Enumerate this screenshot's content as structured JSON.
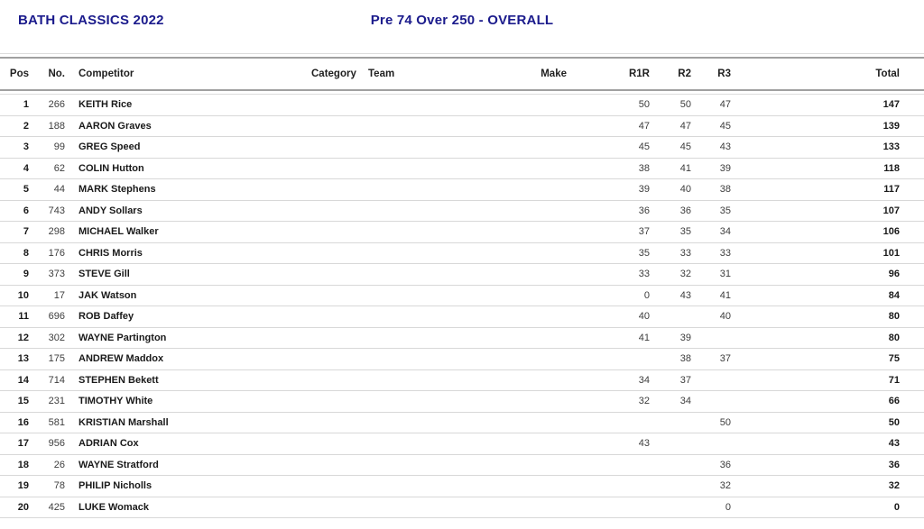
{
  "header": {
    "event_title": "BATH CLASSICS 2022",
    "class_title": "Pre 74 Over 250 - OVERALL"
  },
  "colors": {
    "title_navy": "#1b1b8c",
    "rule_dark": "#a0a0a0",
    "rule_light": "#dcdcdc",
    "row_separator": "#d8d8d8"
  },
  "table": {
    "columns": [
      "Pos",
      "No.",
      "Competitor",
      "Category",
      "Team",
      "Make",
      "R1R",
      "R2",
      "R3",
      "Total"
    ],
    "rows": [
      {
        "pos": "1",
        "no": "266",
        "competitor": "KEITH Rice",
        "category": "",
        "team": "",
        "make": "",
        "r1r": "50",
        "r2": "50",
        "r3": "47",
        "total": "147"
      },
      {
        "pos": "2",
        "no": "188",
        "competitor": "AARON Graves",
        "category": "",
        "team": "",
        "make": "",
        "r1r": "47",
        "r2": "47",
        "r3": "45",
        "total": "139"
      },
      {
        "pos": "3",
        "no": "99",
        "competitor": "GREG Speed",
        "category": "",
        "team": "",
        "make": "",
        "r1r": "45",
        "r2": "45",
        "r3": "43",
        "total": "133"
      },
      {
        "pos": "4",
        "no": "62",
        "competitor": "COLIN Hutton",
        "category": "",
        "team": "",
        "make": "",
        "r1r": "38",
        "r2": "41",
        "r3": "39",
        "total": "118"
      },
      {
        "pos": "5",
        "no": "44",
        "competitor": "MARK Stephens",
        "category": "",
        "team": "",
        "make": "",
        "r1r": "39",
        "r2": "40",
        "r3": "38",
        "total": "117"
      },
      {
        "pos": "6",
        "no": "743",
        "competitor": "ANDY Sollars",
        "category": "",
        "team": "",
        "make": "",
        "r1r": "36",
        "r2": "36",
        "r3": "35",
        "total": "107"
      },
      {
        "pos": "7",
        "no": "298",
        "competitor": "MICHAEL Walker",
        "category": "",
        "team": "",
        "make": "",
        "r1r": "37",
        "r2": "35",
        "r3": "34",
        "total": "106"
      },
      {
        "pos": "8",
        "no": "176",
        "competitor": "CHRIS Morris",
        "category": "",
        "team": "",
        "make": "",
        "r1r": "35",
        "r2": "33",
        "r3": "33",
        "total": "101"
      },
      {
        "pos": "9",
        "no": "373",
        "competitor": "STEVE Gill",
        "category": "",
        "team": "",
        "make": "",
        "r1r": "33",
        "r2": "32",
        "r3": "31",
        "total": "96"
      },
      {
        "pos": "10",
        "no": "17",
        "competitor": "JAK Watson",
        "category": "",
        "team": "",
        "make": "",
        "r1r": "0",
        "r2": "43",
        "r3": "41",
        "total": "84"
      },
      {
        "pos": "11",
        "no": "696",
        "competitor": "ROB Daffey",
        "category": "",
        "team": "",
        "make": "",
        "r1r": "40",
        "r2": "",
        "r3": "40",
        "total": "80"
      },
      {
        "pos": "12",
        "no": "302",
        "competitor": "WAYNE Partington",
        "category": "",
        "team": "",
        "make": "",
        "r1r": "41",
        "r2": "39",
        "r3": "",
        "total": "80"
      },
      {
        "pos": "13",
        "no": "175",
        "competitor": "ANDREW Maddox",
        "category": "",
        "team": "",
        "make": "",
        "r1r": "",
        "r2": "38",
        "r3": "37",
        "total": "75"
      },
      {
        "pos": "14",
        "no": "714",
        "competitor": "STEPHEN Bekett",
        "category": "",
        "team": "",
        "make": "",
        "r1r": "34",
        "r2": "37",
        "r3": "",
        "total": "71"
      },
      {
        "pos": "15",
        "no": "231",
        "competitor": "TIMOTHY White",
        "category": "",
        "team": "",
        "make": "",
        "r1r": "32",
        "r2": "34",
        "r3": "",
        "total": "66"
      },
      {
        "pos": "16",
        "no": "581",
        "competitor": "KRISTIAN Marshall",
        "category": "",
        "team": "",
        "make": "",
        "r1r": "",
        "r2": "",
        "r3": "50",
        "total": "50"
      },
      {
        "pos": "17",
        "no": "956",
        "competitor": "ADRIAN Cox",
        "category": "",
        "team": "",
        "make": "",
        "r1r": "43",
        "r2": "",
        "r3": "",
        "total": "43"
      },
      {
        "pos": "18",
        "no": "26",
        "competitor": "WAYNE Stratford",
        "category": "",
        "team": "",
        "make": "",
        "r1r": "",
        "r2": "",
        "r3": "36",
        "total": "36"
      },
      {
        "pos": "19",
        "no": "78",
        "competitor": "PHILIP Nicholls",
        "category": "",
        "team": "",
        "make": "",
        "r1r": "",
        "r2": "",
        "r3": "32",
        "total": "32"
      },
      {
        "pos": "20",
        "no": "425",
        "competitor": "LUKE Womack",
        "category": "",
        "team": "",
        "make": "",
        "r1r": "",
        "r2": "",
        "r3": "0",
        "total": "0"
      }
    ]
  }
}
